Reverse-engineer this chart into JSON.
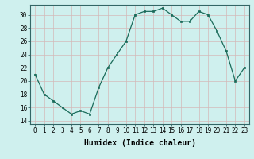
{
  "x": [
    0,
    1,
    2,
    3,
    4,
    5,
    6,
    7,
    8,
    9,
    10,
    11,
    12,
    13,
    14,
    15,
    16,
    17,
    18,
    19,
    20,
    21,
    22,
    23
  ],
  "y": [
    21,
    18,
    17,
    16,
    15,
    15.5,
    15,
    19,
    22,
    24,
    26,
    30,
    30.5,
    30.5,
    31,
    30,
    29,
    29,
    30.5,
    30,
    27.5,
    24.5,
    20,
    22
  ],
  "line_color": "#1a6b5a",
  "marker_color": "#1a6b5a",
  "bg_color": "#cff0ee",
  "grid_color": "#d4b8b8",
  "xlabel": "Humidex (Indice chaleur)",
  "ylim": [
    13.5,
    31.5
  ],
  "xlim": [
    -0.5,
    23.5
  ],
  "yticks": [
    14,
    16,
    18,
    20,
    22,
    24,
    26,
    28,
    30
  ],
  "xticks": [
    0,
    1,
    2,
    3,
    4,
    5,
    6,
    7,
    8,
    9,
    10,
    11,
    12,
    13,
    14,
    15,
    16,
    17,
    18,
    19,
    20,
    21,
    22,
    23
  ],
  "tick_fontsize": 5.5,
  "label_fontsize": 7
}
